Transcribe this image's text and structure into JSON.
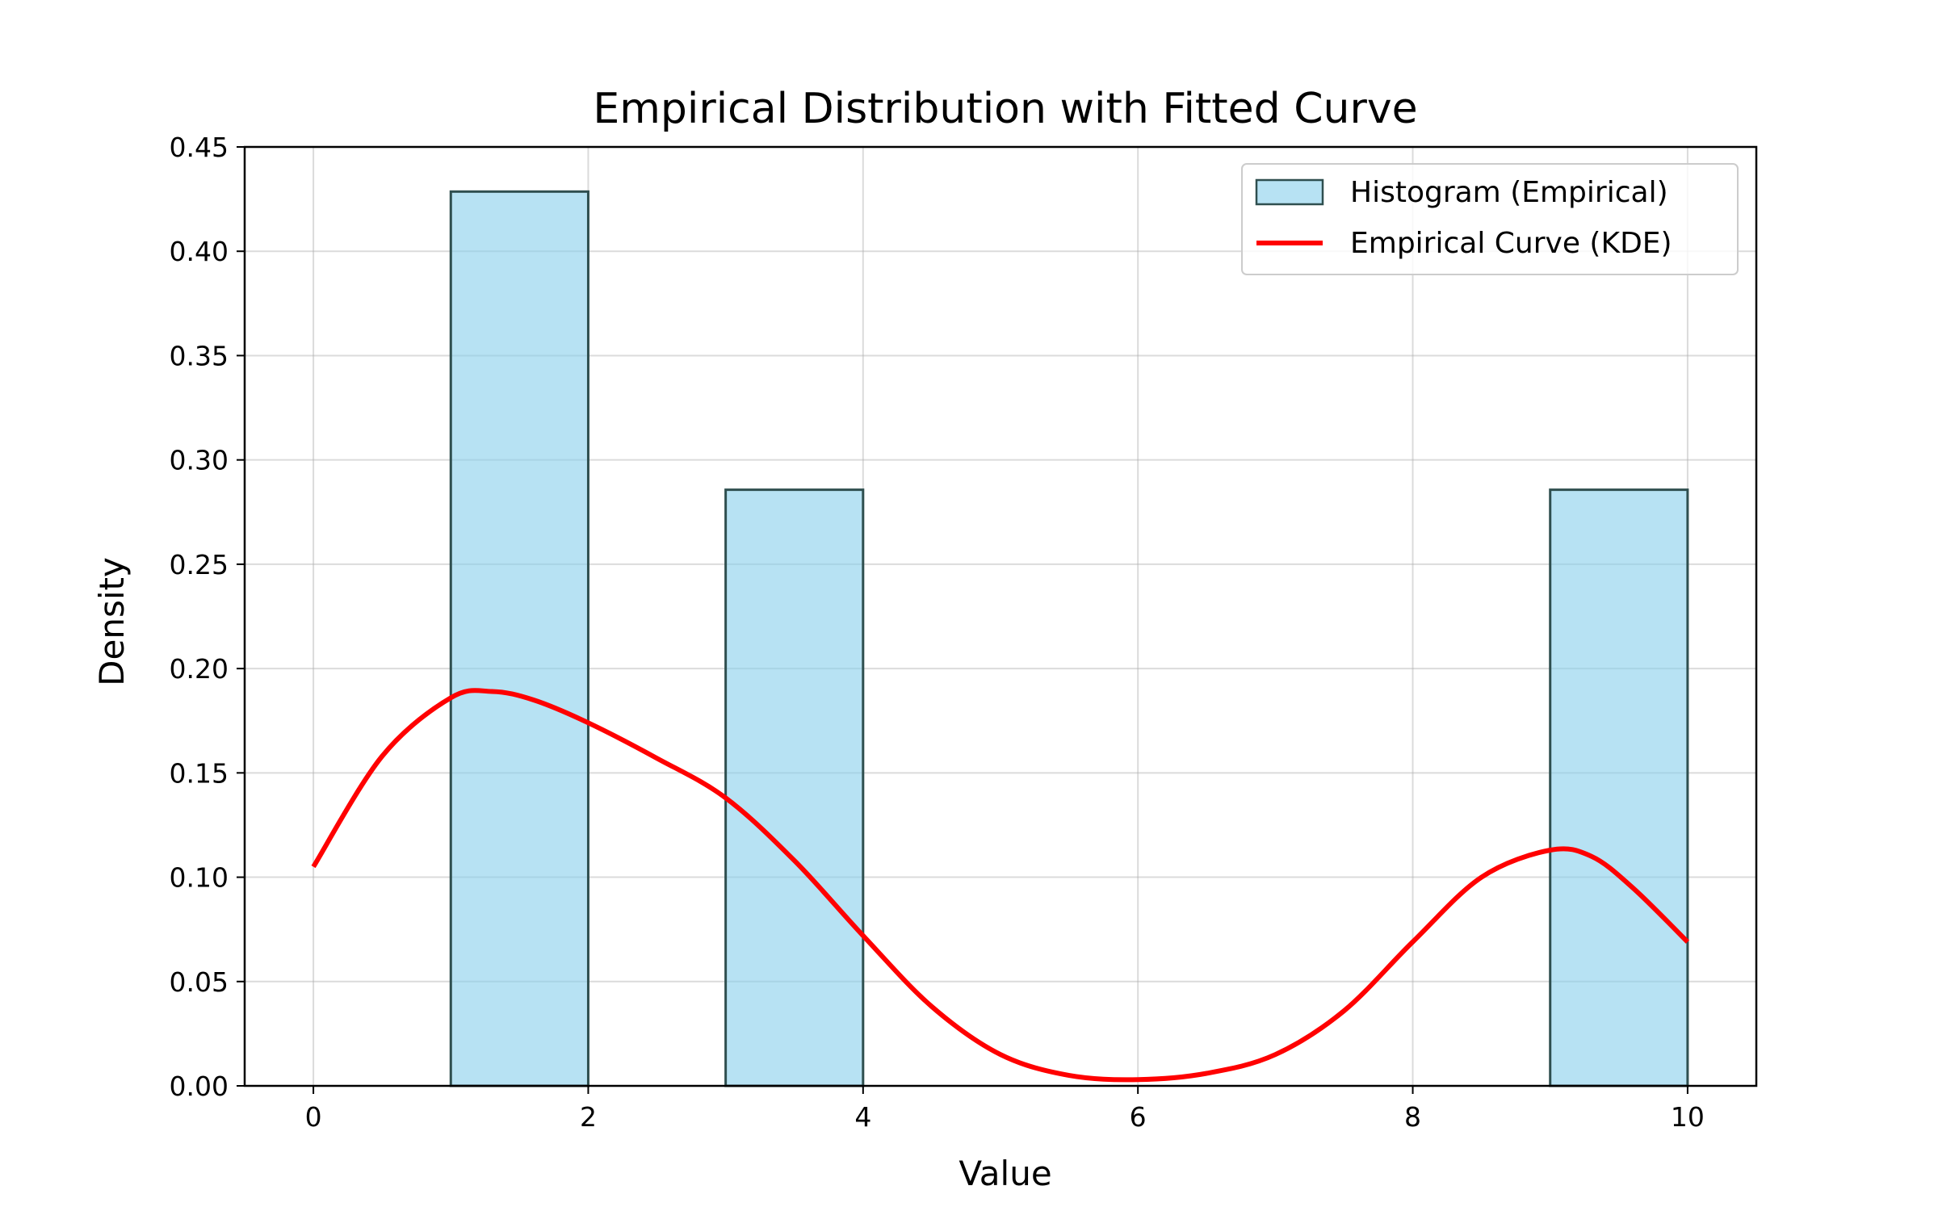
{
  "chart_data": {
    "type": "bar",
    "title": "Empirical Distribution with Fitted Curve",
    "xlabel": "Value",
    "ylabel": "Density",
    "xlim": [
      -0.5,
      10.5
    ],
    "ylim": [
      0,
      0.45
    ],
    "xticks": [
      0,
      2,
      4,
      6,
      8,
      10
    ],
    "yticks": [
      0.0,
      0.05,
      0.1,
      0.15,
      0.2,
      0.25,
      0.3,
      0.35,
      0.4,
      0.45
    ],
    "ytick_labels": [
      "0.00",
      "0.05",
      "0.10",
      "0.15",
      "0.20",
      "0.25",
      "0.30",
      "0.35",
      "0.40",
      "0.45"
    ],
    "grid": true,
    "legend_position": "top-right",
    "histogram": {
      "name": "Histogram (Empirical)",
      "color": "#87CEEB",
      "edge_color": "#2F4F4F",
      "bins": [
        {
          "x0": 1,
          "x1": 2,
          "value": 0.4286
        },
        {
          "x0": 3,
          "x1": 4,
          "value": 0.2857
        },
        {
          "x0": 9,
          "x1": 10,
          "value": 0.2857
        }
      ]
    },
    "kde": {
      "name": "Empirical Curve (KDE)",
      "color": "#ff0000",
      "x": [
        0,
        0.5,
        1.0,
        1.3,
        1.6,
        2.0,
        2.5,
        3.0,
        3.5,
        4.0,
        4.5,
        5.0,
        5.5,
        6.0,
        6.5,
        7.0,
        7.5,
        8.0,
        8.5,
        9.0,
        9.3,
        9.6,
        10.0
      ],
      "y": [
        0.105,
        0.158,
        0.186,
        0.189,
        0.185,
        0.174,
        0.157,
        0.138,
        0.108,
        0.072,
        0.038,
        0.015,
        0.005,
        0.003,
        0.006,
        0.015,
        0.036,
        0.069,
        0.1,
        0.113,
        0.11,
        0.095,
        0.069
      ]
    }
  }
}
